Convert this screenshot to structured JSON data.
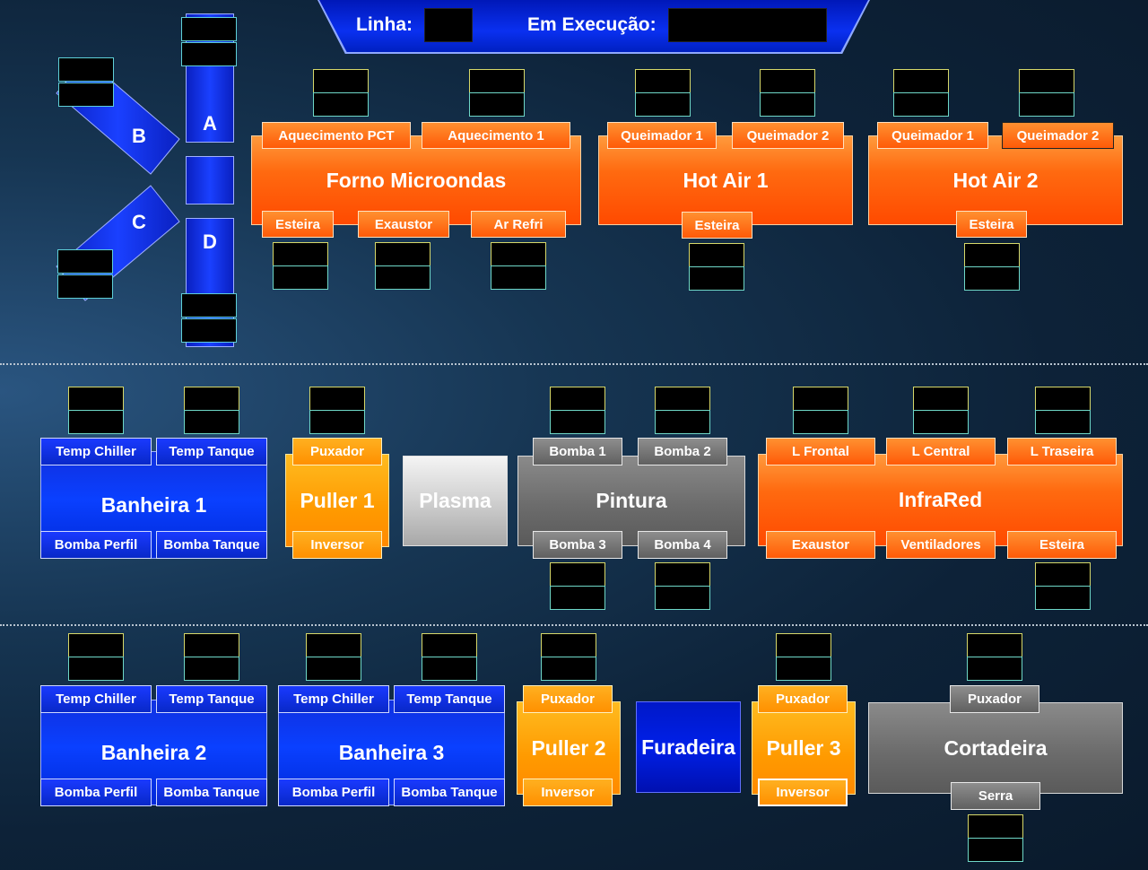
{
  "header": {
    "linha_label": "Linha:",
    "em_execucao_label": "Em Execução:"
  },
  "router": {
    "a": "A",
    "b": "B",
    "c": "C",
    "d": "D"
  },
  "forno": {
    "title": "Forno Microondas",
    "top": [
      "Aquecimento PCT",
      "Aquecimento 1"
    ],
    "bottom": [
      "Esteira",
      "Exaustor",
      "Ar Refri"
    ]
  },
  "hotair1": {
    "title": "Hot Air 1",
    "top": [
      "Queimador 1",
      "Queimador 2"
    ],
    "bottom": [
      "Esteira"
    ]
  },
  "hotair2": {
    "title": "Hot Air 2",
    "top": [
      "Queimador 1",
      "Queimador 2"
    ],
    "bottom": [
      "Esteira"
    ]
  },
  "banheira1": {
    "title": "Banheira 1",
    "top": [
      "Temp Chiller",
      "Temp Tanque"
    ],
    "bottom": [
      "Bomba Perfil",
      "Bomba Tanque"
    ]
  },
  "puller1": {
    "title": "Puller 1",
    "top": "Puxador",
    "bottom": "Inversor"
  },
  "plasma": {
    "title": "Plasma"
  },
  "pintura": {
    "title": "Pintura",
    "top": [
      "Bomba 1",
      "Bomba 2"
    ],
    "bottom": [
      "Bomba 3",
      "Bomba 4"
    ]
  },
  "infrared": {
    "title": "InfraRed",
    "top": [
      "L Frontal",
      "L Central",
      "L Traseira"
    ],
    "bottom": [
      "Exaustor",
      "Ventiladores",
      "Esteira"
    ]
  },
  "banheira2": {
    "title": "Banheira 2",
    "top": [
      "Temp Chiller",
      "Temp Tanque"
    ],
    "bottom": [
      "Bomba Perfil",
      "Bomba Tanque"
    ]
  },
  "banheira3": {
    "title": "Banheira 3",
    "top": [
      "Temp Chiller",
      "Temp Tanque"
    ],
    "bottom": [
      "Bomba Perfil",
      "Bomba Tanque"
    ]
  },
  "puller2": {
    "title": "Puller 2",
    "top": "Puxador",
    "bottom": "Inversor"
  },
  "furadeira": {
    "title": "Furadeira"
  },
  "puller3": {
    "title": "Puller 3",
    "top": "Puxador",
    "bottom": "Inversor"
  },
  "cortadeira": {
    "title": "Cortadeira",
    "top": "Puxador",
    "bottom": "Serra"
  },
  "colors": {
    "orange": "#ff5a08",
    "yellow": "#ff9a00",
    "blue": "#0a40ff",
    "gray": "#6c6c6c",
    "background": "#0d2238"
  }
}
